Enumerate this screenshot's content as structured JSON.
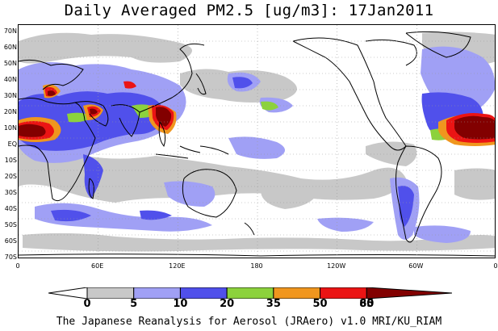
{
  "title": "Daily Averaged PM2.5 [ug/m3]: 17Jan2011",
  "footer": "The Japanese Reanalysis for Aerosol (JRAero) v1.0 MRI/KU_RIAM",
  "latitude_labels": [
    "70N",
    "60N",
    "50N",
    "40N",
    "30N",
    "20N",
    "10N",
    "EQ",
    "10S",
    "20S",
    "30S",
    "40S",
    "50S",
    "60S",
    "70S"
  ],
  "longitude_labels": [
    "0",
    "60E",
    "120E",
    "180",
    "120W",
    "60W",
    "0"
  ],
  "colorbar": {
    "levels": [
      "0",
      "5",
      "10",
      "20",
      "35",
      "50",
      "65",
      "80"
    ],
    "colors": [
      "#ffffff",
      "#c8c8c8",
      "#a0a0f5",
      "#5050eb",
      "#8cd23c",
      "#f0961e",
      "#eb1414",
      "#820000"
    ]
  },
  "colors": {
    "coast": "#000000",
    "grid": "#999999"
  }
}
